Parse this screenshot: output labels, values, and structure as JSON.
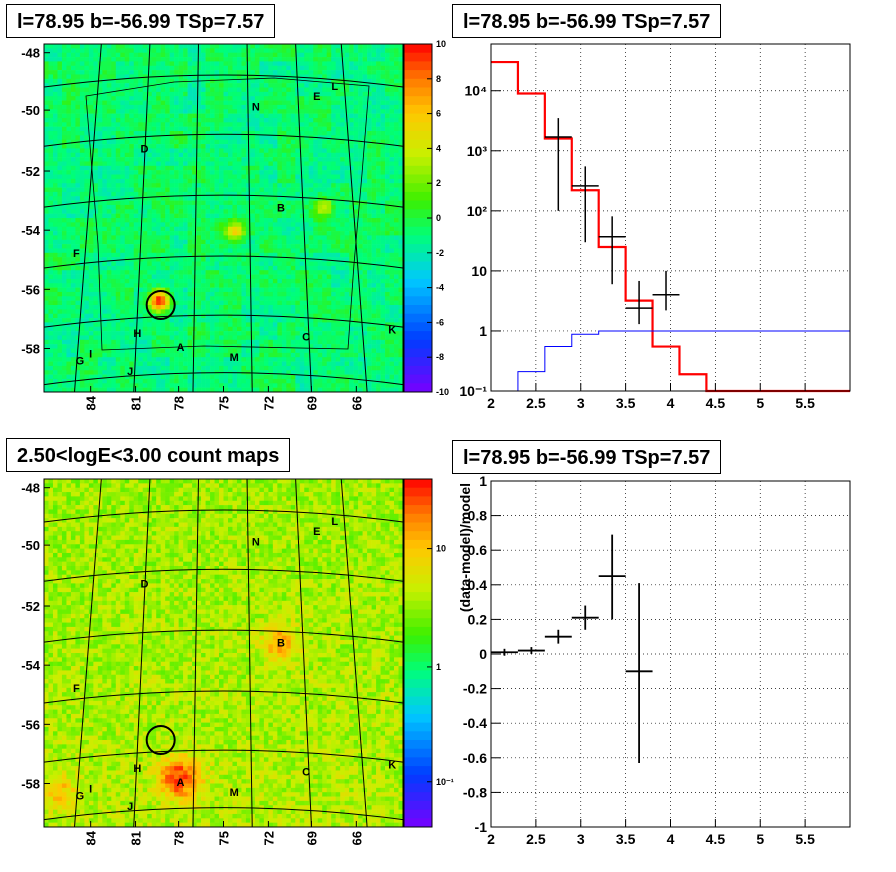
{
  "panels": {
    "tl_title": "l=78.95 b=-56.99 TSp=7.57",
    "tr_title": "l=78.95 b=-56.99 TSp=7.57",
    "bl_title": "2.50<logE<3.00 count maps",
    "br_title": "l=78.95 b=-56.99 TSp=7.57"
  },
  "chart_data": [
    {
      "type": "heatmap",
      "title": "l=78.95 b=-56.99 TSp=7.57",
      "x_ticks": [
        "84",
        "81",
        "78",
        "75",
        "72",
        "69",
        "66"
      ],
      "y_ticks": [
        "-48",
        "-50",
        "-52",
        "-54",
        "-56",
        "-58"
      ],
      "colorbar_ticks": [
        "10",
        "8",
        "6",
        "4",
        "2",
        "0",
        "-2",
        "-4",
        "-6",
        "-8",
        "-10"
      ],
      "zlim": [
        -10,
        10
      ],
      "source_labels": [
        "A",
        "B",
        "C",
        "D",
        "E",
        "F",
        "G",
        "H",
        "I",
        "J",
        "K",
        "L",
        "M",
        "N"
      ],
      "marker": {
        "type": "circle",
        "l": 78.95,
        "b": -56.99
      }
    },
    {
      "type": "line",
      "title": "l=78.95 b=-56.99 TSp=7.57",
      "yscale": "log",
      "xlim": [
        2,
        6
      ],
      "ylim": [
        0.1,
        60000
      ],
      "x_ticks": [
        "2",
        "2.5",
        "3",
        "3.5",
        "4",
        "4.5",
        "5",
        "5.5"
      ],
      "y_ticks": [
        "10⁻¹",
        "1",
        "10",
        "10²",
        "10³",
        "10⁴"
      ],
      "grid": true,
      "series": [
        {
          "kind": "step",
          "color": "#ff0000",
          "edges": [
            2.0,
            2.3,
            2.6,
            2.9,
            3.2,
            3.5,
            3.8,
            4.1,
            4.4,
            6.0
          ],
          "values": [
            30000,
            9000,
            1600,
            220,
            25,
            3.2,
            0.55,
            0.19,
            0.1
          ]
        },
        {
          "kind": "step",
          "color": "#0000ff",
          "edges": [
            2.3,
            2.6,
            2.9,
            3.2,
            6.0
          ],
          "values": [
            0.21,
            0.55,
            0.88,
            1.0
          ]
        },
        {
          "kind": "points",
          "color": "#000000",
          "x": [
            2.75,
            3.05,
            3.35,
            3.65,
            3.95
          ],
          "y": [
            1700,
            260,
            37,
            2.4,
            4
          ],
          "xerr": [
            0.15,
            0.15,
            0.15,
            0.15,
            0.15
          ],
          "yerr_low": [
            1600,
            230,
            31,
            1.1,
            1.8
          ],
          "yerr_high": [
            1800,
            290,
            44,
            4.4,
            6
          ]
        }
      ]
    },
    {
      "type": "heatmap",
      "title": "2.50<logE<3.00 count maps",
      "x_ticks": [
        "84",
        "81",
        "78",
        "75",
        "72",
        "69",
        "66"
      ],
      "y_ticks": [
        "-48",
        "-50",
        "-52",
        "-54",
        "-56",
        "-58"
      ],
      "colorbar_ticks": [
        "10",
        "1",
        "10⁻¹"
      ],
      "zscale": "log",
      "source_labels": [
        "A",
        "B",
        "C",
        "D",
        "E",
        "F",
        "G",
        "H",
        "I",
        "J",
        "K",
        "L",
        "M",
        "N"
      ],
      "marker": {
        "type": "circle",
        "l": 78.95,
        "b": -56.99
      }
    },
    {
      "type": "scatter",
      "title": "l=78.95 b=-56.99 TSp=7.57",
      "ylabel": "(data-model)/model",
      "xlim": [
        2,
        6
      ],
      "ylim": [
        -1,
        1
      ],
      "x_ticks": [
        "2",
        "2.5",
        "3",
        "3.5",
        "4",
        "4.5",
        "5",
        "5.5"
      ],
      "y_ticks": [
        "1",
        "0.8",
        "0.6",
        "0.4",
        "0.2",
        "0",
        "-0.2",
        "-0.4",
        "-0.6",
        "-0.8",
        "-1"
      ],
      "grid": true,
      "x": [
        2.15,
        2.45,
        2.75,
        3.05,
        3.35,
        3.65
      ],
      "y": [
        0.01,
        0.02,
        0.1,
        0.21,
        0.45,
        -0.1
      ],
      "xerr": [
        0.15,
        0.15,
        0.15,
        0.15,
        0.15,
        0.15
      ],
      "yerr_low": [
        0.02,
        0.02,
        0.04,
        0.07,
        0.25,
        0.53
      ],
      "yerr_high": [
        0.02,
        0.02,
        0.04,
        0.07,
        0.24,
        0.51
      ]
    }
  ]
}
